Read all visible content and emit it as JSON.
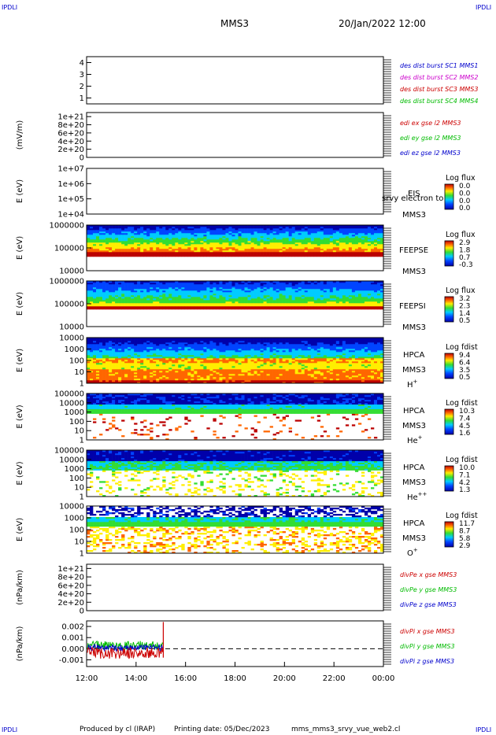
{
  "header": {
    "corner_tl": "IPDLI",
    "corner_tr": "IPDLI",
    "corner_bl": "IPDLI",
    "corner_br": "IPDLI",
    "title": "MMS3",
    "datetime": "20/Jan/2022 12:00"
  },
  "footer": {
    "produced_by": "Produced by cl (IRAP)",
    "printing_date": "Printing date: 05/Dec/2023",
    "script_name": "mms_mms3_srvy_vue_web2.cl"
  },
  "colors": {
    "blue": "#0000cc",
    "magenta": "#cc00cc",
    "red": "#cc0000",
    "green": "#00bb00"
  },
  "chart_data": [
    {
      "type": "line",
      "panel": "des-dist-burst",
      "ylabel": "",
      "yticks": [
        "1",
        "2",
        "3",
        "4"
      ],
      "ylim": [
        0.5,
        4.5
      ],
      "legend": [
        {
          "text": "des dist burst SC1 MMS1",
          "color": "#0000cc"
        },
        {
          "text": "des dist burst SC2 MMS2",
          "color": "#cc00cc"
        },
        {
          "text": "des dist burst SC3 MMS3",
          "color": "#cc0000"
        },
        {
          "text": "des dist burst SC4 MMS4",
          "color": "#00bb00"
        }
      ],
      "series": []
    },
    {
      "type": "line",
      "panel": "edi-e-gse",
      "ylabel": "(mV/m)",
      "yticks": [
        "0",
        "2e+20",
        "4e+20",
        "6e+20",
        "8e+20",
        "1e+21"
      ],
      "ylim": [
        0,
        1.1e+21
      ],
      "zero_line": true,
      "legend": [
        {
          "text": "edi ex gse l2 MMS3",
          "color": "#cc0000"
        },
        {
          "text": "edi ey gse l2 MMS3",
          "color": "#00bb00"
        },
        {
          "text": "edi ez gse l2 MMS3",
          "color": "#0000cc"
        }
      ],
      "series": []
    },
    {
      "type": "heatmap",
      "panel": "eis",
      "ylabel": "E (eV)",
      "yticks": [
        "1e+04",
        "1e+05",
        "1e+06",
        "1e+07"
      ],
      "scale": "log",
      "instrument": "EIS",
      "overlay_text": "srvy electron to",
      "spacecraft": "MMS3",
      "colorbar": {
        "title": "Log flux",
        "labels": [
          "0.0",
          "0.0",
          "0.0",
          "0.0"
        ]
      },
      "filled": false
    },
    {
      "type": "heatmap",
      "panel": "feepse",
      "ylabel": "E (eV)",
      "yticks": [
        "10000",
        "100000",
        "1000000"
      ],
      "scale": "log",
      "instrument": "FEEPSE",
      "spacecraft": "MMS3",
      "colorbar": {
        "title": "Log flux",
        "labels": [
          "2.9",
          "1.8",
          "0.7",
          "-0.3"
        ]
      },
      "filled": true
    },
    {
      "type": "heatmap",
      "panel": "feepsi",
      "ylabel": "E (eV)",
      "yticks": [
        "10000",
        "100000",
        "1000000"
      ],
      "scale": "log",
      "instrument": "FEEPSI",
      "spacecraft": "MMS3",
      "colorbar": {
        "title": "Log flux",
        "labels": [
          "3.2",
          "2.3",
          "1.4",
          "0.5"
        ]
      },
      "filled": true
    },
    {
      "type": "heatmap",
      "panel": "hpca-h",
      "ylabel": "E (eV)",
      "yticks": [
        "1",
        "10",
        "100",
        "1000",
        "10000"
      ],
      "scale": "log",
      "instrument": "HPCA",
      "spacecraft": "MMS3",
      "species": "H",
      "species_sup": "+",
      "colorbar": {
        "title": "Log fdist",
        "labels": [
          "9.4",
          "6.4",
          "3.5",
          "0.5"
        ]
      },
      "filled": true
    },
    {
      "type": "heatmap",
      "panel": "hpca-he",
      "ylabel": "E (eV)",
      "yticks": [
        "1",
        "10",
        "100",
        "1000",
        "10000",
        "100000"
      ],
      "scale": "log",
      "instrument": "HPCA",
      "spacecraft": "MMS3",
      "species": "He",
      "species_sup": "+",
      "colorbar": {
        "title": "Log fdist",
        "labels": [
          "10.3",
          "7.4",
          "4.5",
          "1.6"
        ]
      },
      "filled": true
    },
    {
      "type": "heatmap",
      "panel": "hpca-hepp",
      "ylabel": "E (eV)",
      "yticks": [
        "1",
        "10",
        "100",
        "1000",
        "10000",
        "100000"
      ],
      "scale": "log",
      "instrument": "HPCA",
      "spacecraft": "MMS3",
      "species": "He",
      "species_sup": "++",
      "colorbar": {
        "title": "Log fdist",
        "labels": [
          "10.0",
          "7.1",
          "4.2",
          "1.3"
        ]
      },
      "filled": true
    },
    {
      "type": "heatmap",
      "panel": "hpca-o",
      "ylabel": "E (eV)",
      "yticks": [
        "1",
        "10",
        "100",
        "1000",
        "10000"
      ],
      "scale": "log",
      "instrument": "HPCA",
      "spacecraft": "MMS3",
      "species": "O",
      "species_sup": "+",
      "colorbar": {
        "title": "Log fdist",
        "labels": [
          "11.7",
          "8.7",
          "5.8",
          "2.9"
        ]
      },
      "filled": true
    },
    {
      "type": "line",
      "panel": "divpe",
      "ylabel": "(nPa/km)",
      "yticks": [
        "0",
        "2e+20",
        "4e+20",
        "6e+20",
        "8e+20",
        "1e+21"
      ],
      "ylim": [
        0,
        1.1e+21
      ],
      "zero_line": true,
      "legend": [
        {
          "text": "divPe x gse MMS3",
          "color": "#cc0000"
        },
        {
          "text": "divPe y gse MMS3",
          "color": "#00bb00"
        },
        {
          "text": "divPe z gse MMS3",
          "color": "#0000cc"
        }
      ],
      "series": []
    },
    {
      "type": "line",
      "panel": "divpi",
      "ylabel": "(nPa/km)",
      "yticks": [
        "-0.001",
        "0.000",
        "0.001",
        "0.002"
      ],
      "ylim": [
        -0.0016,
        0.0025
      ],
      "zero_line": true,
      "data_end_hour": 15.1,
      "legend": [
        {
          "text": "divPi x gse MMS3",
          "color": "#cc0000"
        },
        {
          "text": "divPi y gse MMS3",
          "color": "#00bb00"
        },
        {
          "text": "divPi z gse MMS3",
          "color": "#0000cc"
        }
      ],
      "series": [
        {
          "name": "divPi x gse MMS3",
          "color": "#cc0000",
          "mean": -0.0004,
          "spread": 0.0005
        },
        {
          "name": "divPi y gse MMS3",
          "color": "#00bb00",
          "mean": 0.0003,
          "spread": 0.0004
        },
        {
          "name": "divPi z gse MMS3",
          "color": "#0000cc",
          "mean": 0.0001,
          "spread": 0.0003
        }
      ]
    }
  ],
  "xaxis": {
    "ticks": [
      "12:00",
      "14:00",
      "16:00",
      "18:00",
      "20:00",
      "22:00",
      "00:00"
    ],
    "start_hour": 12,
    "end_hour": 24
  }
}
